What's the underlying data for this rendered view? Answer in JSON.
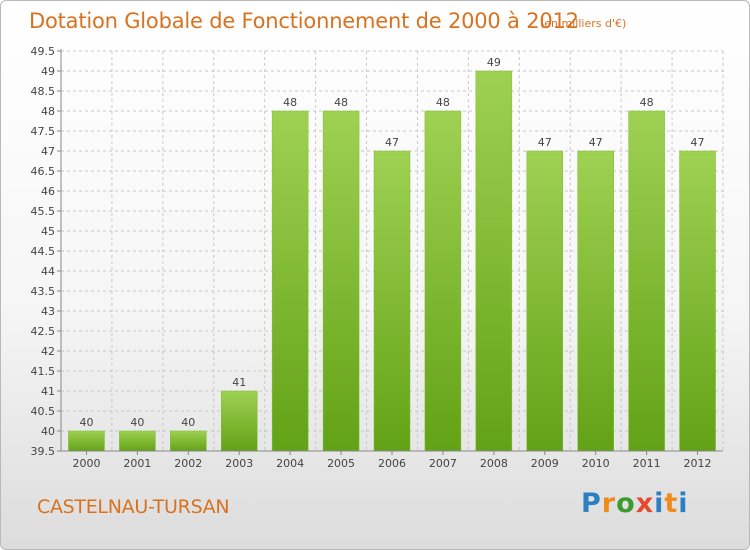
{
  "header": {
    "title": "Dotation Globale de Fonctionnement de 2000 à 2012",
    "unit": "(en milliers d'€)"
  },
  "footer": {
    "commune": "CASTELNAU-TURSAN",
    "logo_letters": [
      "P",
      "r",
      "o",
      "x",
      "i",
      "t",
      "i"
    ]
  },
  "colors": {
    "title": "#d9721f",
    "bar_light": "#9fd153",
    "bar_dark": "#62a216",
    "grid": "#c8c8c8",
    "axis": "#888888",
    "label": "#444444",
    "logo": [
      "#2b7fc2",
      "#f08a1c",
      "#3d9a2e",
      "#e64a2e",
      "#2b7fc2",
      "#f08a1c",
      "#2b7fc2"
    ]
  },
  "chart_data": {
    "type": "bar",
    "title": "Dotation Globale de Fonctionnement de 2000 à 2012",
    "subtitle": "(en milliers d'€)",
    "xlabel": "",
    "ylabel": "",
    "categories": [
      "2000",
      "2001",
      "2002",
      "2003",
      "2004",
      "2005",
      "2006",
      "2007",
      "2008",
      "2009",
      "2010",
      "2011",
      "2012"
    ],
    "values": [
      40,
      40,
      40,
      41,
      48,
      48,
      47,
      48,
      49,
      47,
      47,
      48,
      47
    ],
    "value_labels": [
      "40",
      "40",
      "40",
      "41",
      "48",
      "48",
      "47",
      "48",
      "49",
      "47",
      "47",
      "48",
      "47"
    ],
    "ylim": [
      39.5,
      49.5
    ],
    "yticks": [
      39.5,
      40,
      40.5,
      41,
      41.5,
      42,
      42.5,
      43,
      43.5,
      44,
      44.5,
      45,
      45.5,
      46,
      46.5,
      47,
      47.5,
      48,
      48.5,
      49,
      49.5
    ],
    "ytick_labels": [
      "39.5",
      "40",
      "40.5",
      "41",
      "41.5",
      "42",
      "42.5",
      "43",
      "43.5",
      "44",
      "44.5",
      "45",
      "45.5",
      "46",
      "46.5",
      "47",
      "47.5",
      "48",
      "48.5",
      "49",
      "49.5"
    ],
    "grid": true,
    "legend": "none"
  }
}
